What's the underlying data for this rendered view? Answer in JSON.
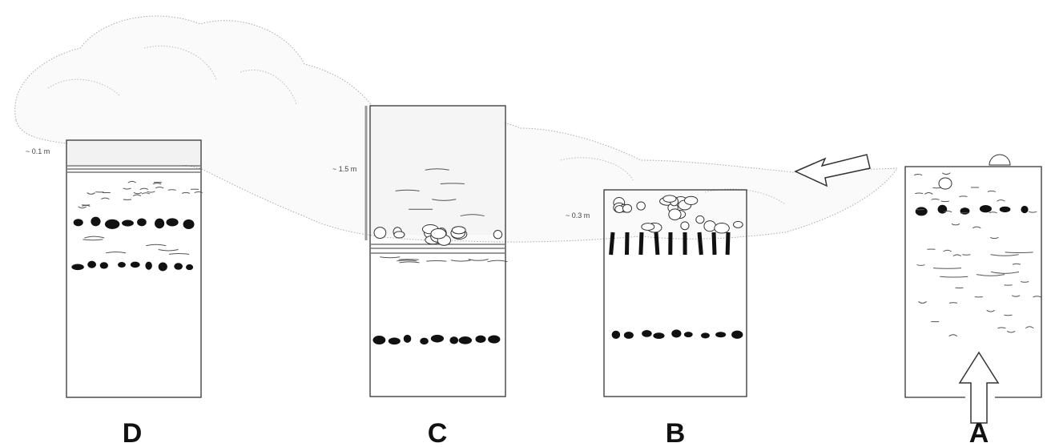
{
  "columns": [
    {
      "letter": "D",
      "depth": "~ 0.1 m"
    },
    {
      "letter": "C",
      "depth": "~ 1.5 m"
    },
    {
      "letter": "B",
      "depth": "~ 0.3 m"
    },
    {
      "letter": "A"
    }
  ]
}
